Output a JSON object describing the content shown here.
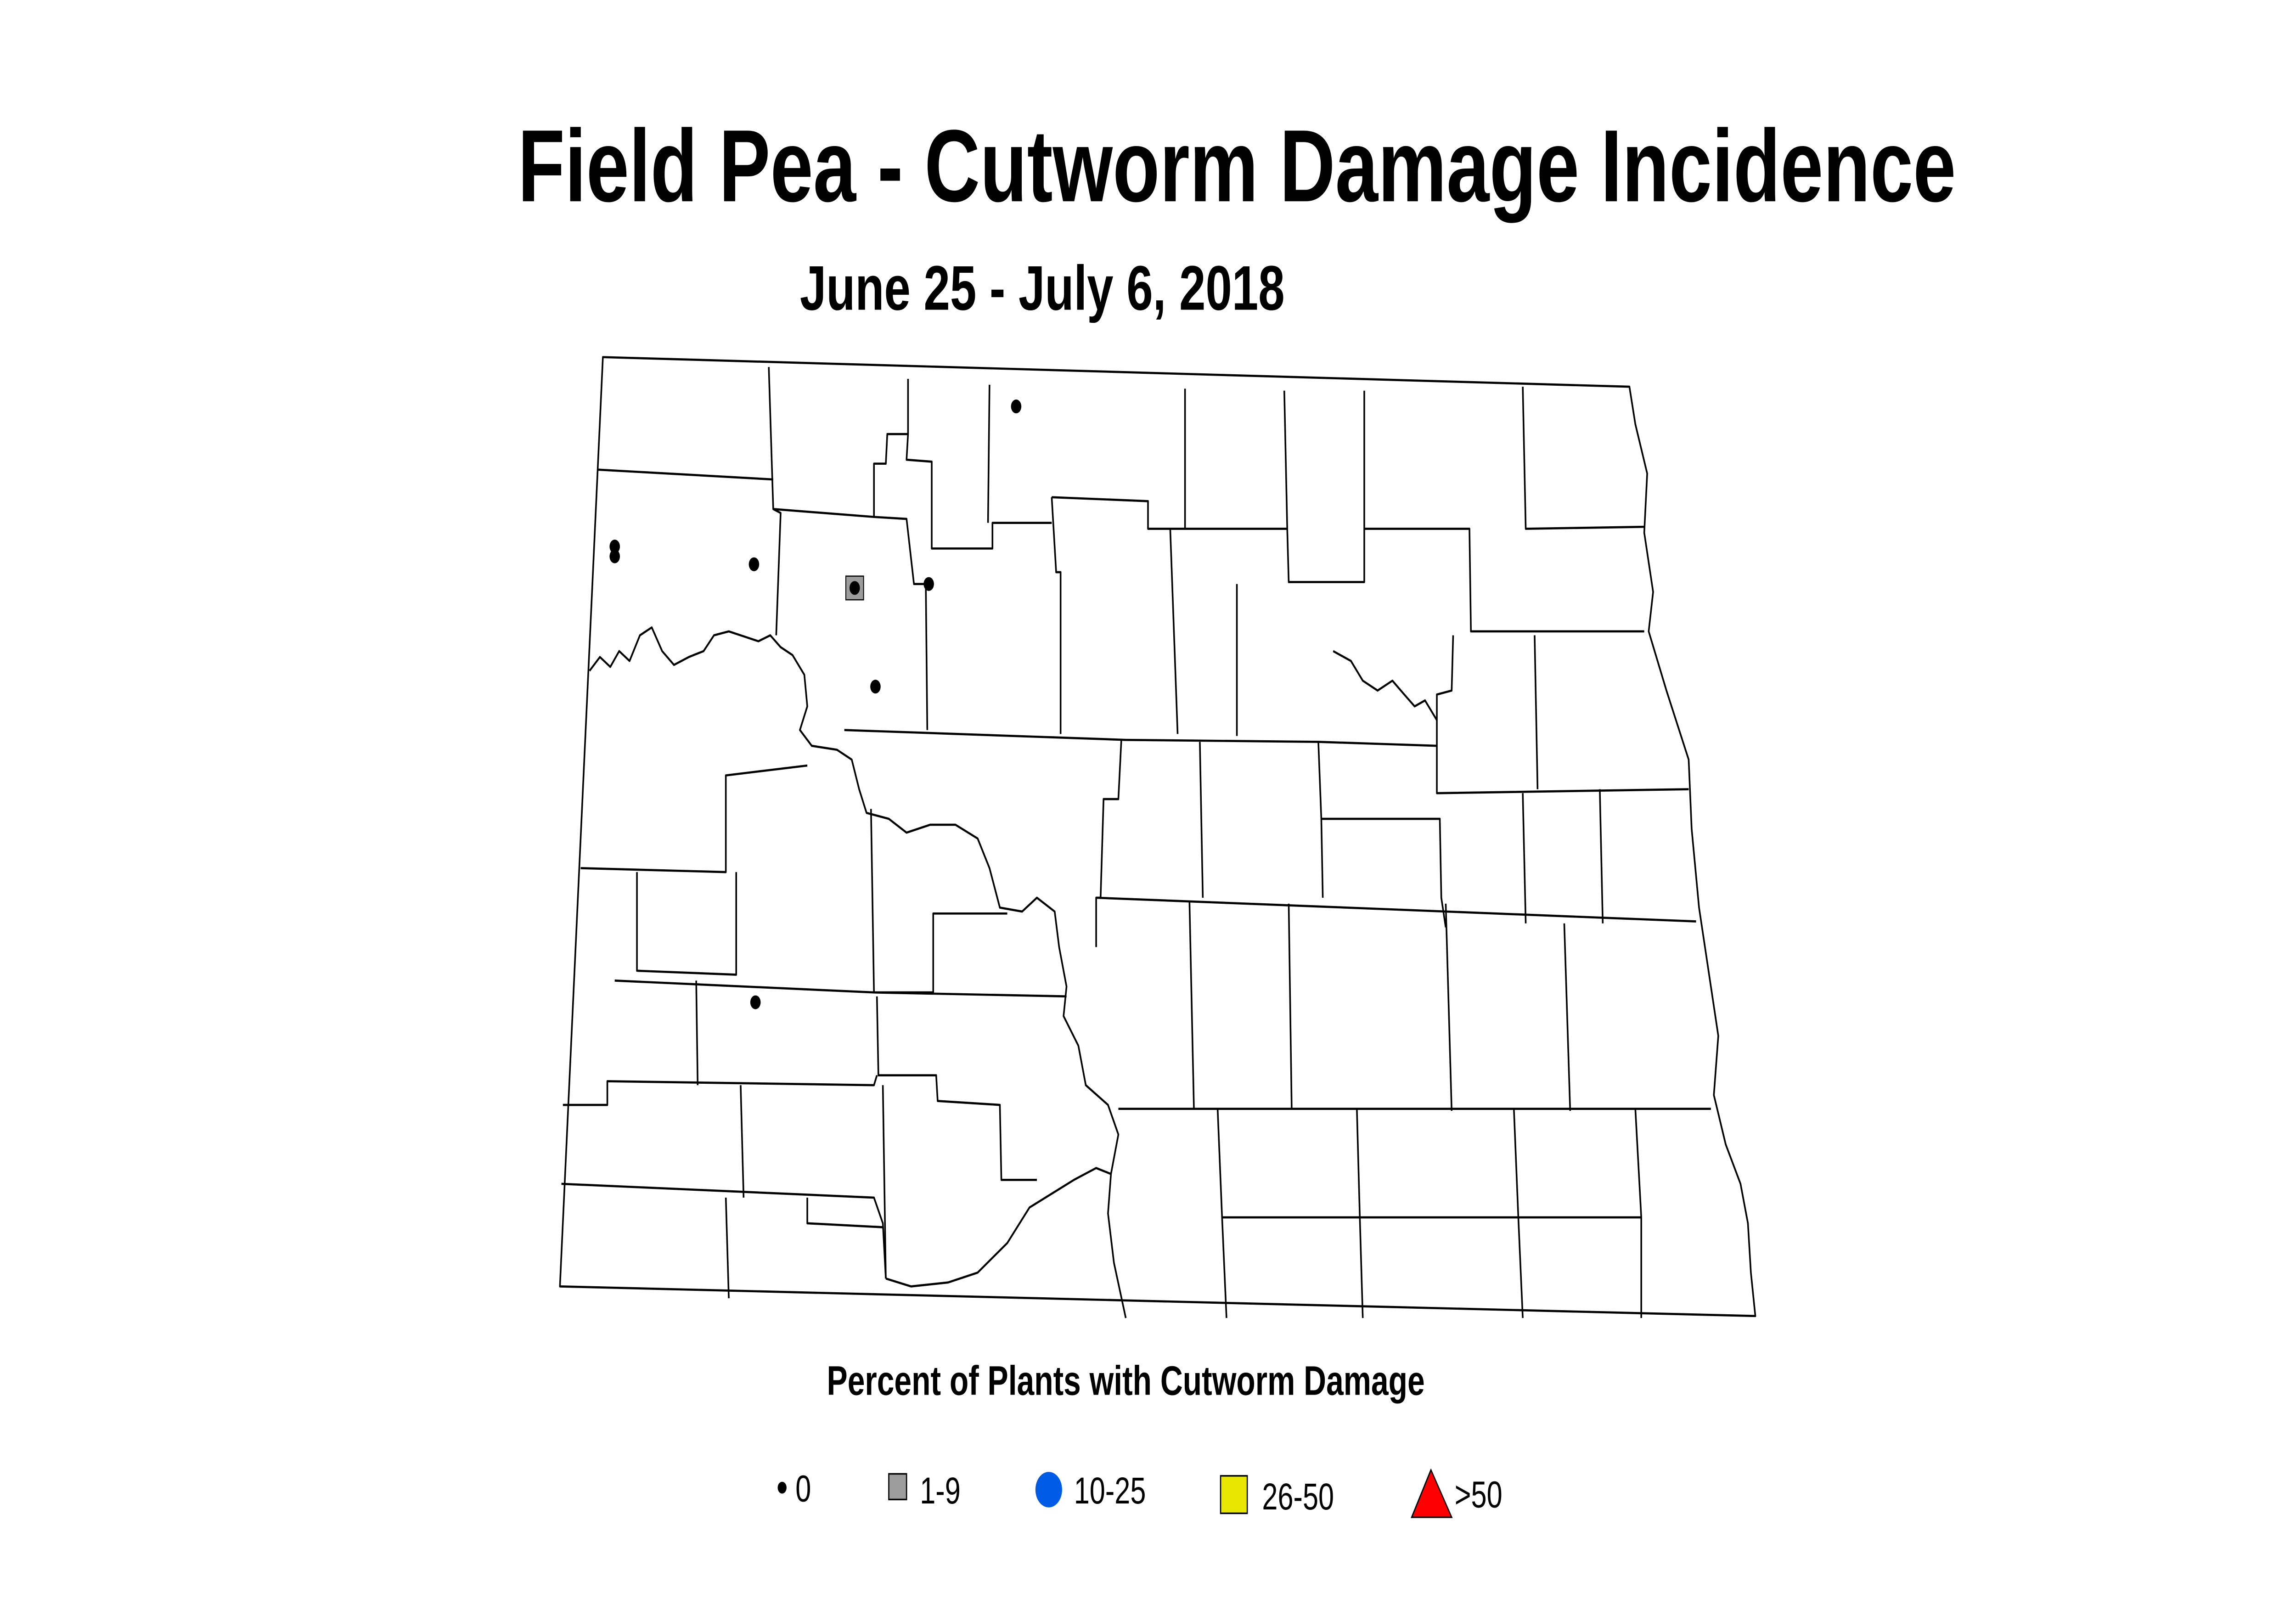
{
  "title": "Field Pea - Cutworm Damage Incidence",
  "subtitle": "June 25 - July 6, 2018",
  "legend": {
    "title": "Percent of Plants with Cutworm Damage",
    "items": [
      {
        "label": "0",
        "symbol": "small-black-dot",
        "color": "#000000"
      },
      {
        "label": "1-9",
        "symbol": "gray-square",
        "color": "#9c9c9c"
      },
      {
        "label": "10-25",
        "symbol": "blue-circle",
        "color": "#005ce6"
      },
      {
        "label": "26-50",
        "symbol": "yellow-square",
        "color": "#e6e600"
      },
      {
        "label": ">50",
        "symbol": "red-triangle",
        "color": "#ff0000"
      }
    ]
  },
  "observations": [
    {
      "category": "0"
    },
    {
      "category": "0"
    },
    {
      "category": "0"
    },
    {
      "category": "0"
    },
    {
      "category": "0"
    },
    {
      "category": "0"
    },
    {
      "category": "0"
    },
    {
      "category": "1-9"
    }
  ]
}
